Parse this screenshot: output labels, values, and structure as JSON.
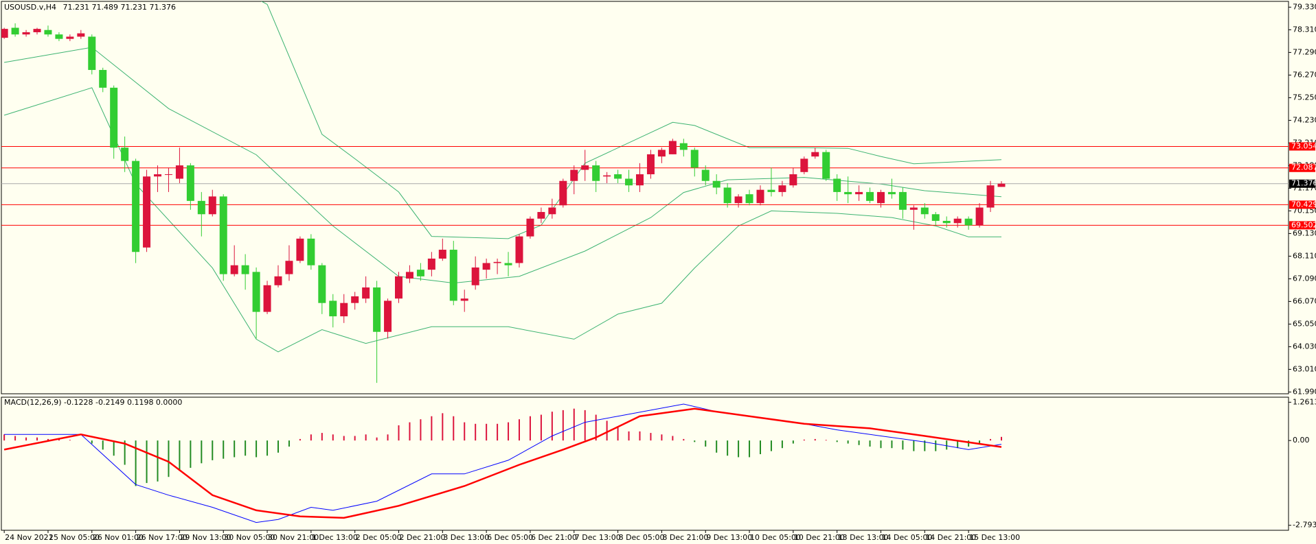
{
  "chart_data": {
    "type": "candlestick",
    "symbol": "USOUSD.v,H4",
    "up_color": "#dc143c",
    "down_color": "#32cd32",
    "xlim": [
      -0.26,
      117.2
    ],
    "ylim": [
      61.91,
      79.59
    ],
    "yticks": [
      {
        "value": 79.33,
        "label": "79.330"
      },
      {
        "value": 78.31,
        "label": "78.310"
      },
      {
        "value": 77.29,
        "label": "77.290"
      },
      {
        "value": 76.27,
        "label": "76.270"
      },
      {
        "value": 75.25,
        "label": "75.250"
      },
      {
        "value": 74.23,
        "label": "74.230"
      },
      {
        "value": 73.21,
        "label": "73.210"
      },
      {
        "value": 72.19,
        "label": "72.190"
      },
      {
        "value": 71.17,
        "label": "71.170"
      },
      {
        "value": 70.15,
        "label": "70.150"
      },
      {
        "value": 69.13,
        "label": "69.130"
      },
      {
        "value": 68.11,
        "label": "68.110"
      },
      {
        "value": 67.09,
        "label": "67.090"
      },
      {
        "value": 66.07,
        "label": "66.070"
      },
      {
        "value": 65.05,
        "label": "65.050"
      },
      {
        "value": 64.03,
        "label": "64.030"
      },
      {
        "value": 63.01,
        "label": "63.010"
      },
      {
        "value": 61.99,
        "label": "61.990"
      }
    ],
    "xticks": [
      {
        "value": 0,
        "label": "24 Nov 2021"
      },
      {
        "value": 4,
        "label": "25 Nov 05:00"
      },
      {
        "value": 8,
        "label": "26 Nov 01:00"
      },
      {
        "value": 12,
        "label": "26 Nov 17:00"
      },
      {
        "value": 16,
        "label": "29 Nov 13:00"
      },
      {
        "value": 20,
        "label": "30 Nov 05:00"
      },
      {
        "value": 24,
        "label": "30 Nov 21:00"
      },
      {
        "value": 28,
        "label": "1 Dec 13:00"
      },
      {
        "value": 32,
        "label": "2 Dec 05:00"
      },
      {
        "value": 36,
        "label": "2 Dec 21:00"
      },
      {
        "value": 40,
        "label": "3 Dec 13:00"
      },
      {
        "value": 44,
        "label": "6 Dec 05:00"
      },
      {
        "value": 48,
        "label": "6 Dec 21:00"
      },
      {
        "value": 52,
        "label": "7 Dec 13:00"
      },
      {
        "value": 56,
        "label": "8 Dec 05:00"
      },
      {
        "value": 60,
        "label": "8 Dec 21:00"
      },
      {
        "value": 64,
        "label": "9 Dec 13:00"
      },
      {
        "value": 68,
        "label": "10 Dec 05:00"
      },
      {
        "value": 72,
        "label": "10 Dec 21:00"
      },
      {
        "value": 76,
        "label": "13 Dec 13:00"
      },
      {
        "value": 80,
        "label": "14 Dec 05:00"
      },
      {
        "value": 84,
        "label": "14 Dec 21:00"
      },
      {
        "value": 88,
        "label": "15 Dec 13:00"
      }
    ],
    "candles": [
      [
        77.95,
        78.4,
        77.9,
        78.35
      ],
      [
        78.4,
        78.6,
        78.0,
        78.1
      ],
      [
        78.1,
        78.3,
        78.0,
        78.2
      ],
      [
        78.2,
        78.4,
        78.1,
        78.35
      ],
      [
        78.3,
        78.5,
        78.0,
        78.1
      ],
      [
        78.1,
        78.2,
        77.8,
        77.9
      ],
      [
        77.9,
        78.1,
        77.8,
        78.0
      ],
      [
        78.0,
        78.3,
        77.9,
        78.15
      ],
      [
        78.0,
        78.1,
        76.3,
        76.5
      ],
      [
        76.5,
        76.6,
        75.5,
        75.7
      ],
      [
        75.7,
        75.8,
        72.5,
        73.0
      ],
      [
        73.0,
        73.5,
        71.9,
        72.4
      ],
      [
        72.4,
        72.5,
        67.8,
        68.3
      ],
      [
        68.5,
        72.0,
        68.3,
        71.7
      ],
      [
        71.7,
        72.2,
        71.0,
        71.8
      ],
      [
        71.8,
        72.1,
        71.0,
        71.8
      ],
      [
        71.6,
        73.0,
        71.4,
        72.2
      ],
      [
        72.2,
        72.3,
        70.2,
        70.6
      ],
      [
        70.6,
        71.0,
        69.0,
        70.0
      ],
      [
        70.0,
        71.1,
        69.9,
        70.8
      ],
      [
        70.8,
        70.9,
        67.0,
        67.3
      ],
      [
        67.3,
        68.6,
        67.2,
        67.7
      ],
      [
        67.7,
        68.2,
        66.6,
        67.3
      ],
      [
        67.4,
        67.6,
        64.4,
        65.6
      ],
      [
        65.6,
        67.0,
        65.5,
        66.8
      ],
      [
        66.8,
        67.7,
        66.7,
        67.2
      ],
      [
        67.3,
        68.6,
        67.0,
        67.9
      ],
      [
        67.9,
        69.0,
        67.8,
        68.9
      ],
      [
        68.9,
        69.1,
        67.5,
        67.7
      ],
      [
        67.7,
        67.8,
        65.5,
        66.0
      ],
      [
        66.1,
        66.4,
        64.9,
        65.4
      ],
      [
        65.4,
        66.4,
        65.1,
        66.0
      ],
      [
        66.0,
        66.5,
        65.7,
        66.3
      ],
      [
        66.2,
        67.2,
        66.0,
        66.7
      ],
      [
        66.7,
        67.0,
        62.4,
        64.7
      ],
      [
        64.7,
        66.2,
        64.4,
        66.1
      ],
      [
        66.2,
        67.4,
        66.0,
        67.2
      ],
      [
        67.1,
        67.7,
        66.9,
        67.4
      ],
      [
        67.5,
        67.8,
        67.0,
        67.2
      ],
      [
        67.5,
        68.3,
        67.2,
        68.0
      ],
      [
        68.0,
        68.9,
        67.9,
        68.4
      ],
      [
        68.4,
        68.8,
        65.9,
        66.1
      ],
      [
        66.1,
        66.6,
        65.6,
        66.2
      ],
      [
        66.8,
        68.1,
        66.6,
        67.6
      ],
      [
        67.5,
        68.0,
        67.1,
        67.8
      ],
      [
        67.8,
        68.0,
        67.3,
        67.85
      ],
      [
        67.8,
        68.3,
        67.2,
        67.7
      ],
      [
        67.8,
        69.1,
        67.6,
        69.0
      ],
      [
        69.0,
        69.9,
        68.9,
        69.8
      ],
      [
        69.8,
        70.3,
        69.6,
        70.1
      ],
      [
        70.0,
        70.7,
        69.8,
        70.3
      ],
      [
        70.4,
        71.6,
        70.3,
        71.5
      ],
      [
        71.5,
        72.2,
        70.9,
        72.0
      ],
      [
        72.0,
        72.9,
        71.5,
        72.2
      ],
      [
        72.2,
        72.4,
        71.0,
        71.5
      ],
      [
        71.7,
        71.9,
        71.4,
        71.75
      ],
      [
        71.8,
        72.0,
        71.4,
        71.6
      ],
      [
        71.6,
        72.0,
        71.0,
        71.3
      ],
      [
        71.3,
        72.3,
        71.0,
        71.8
      ],
      [
        71.8,
        72.9,
        71.6,
        72.7
      ],
      [
        72.6,
        73.0,
        72.3,
        72.9
      ],
      [
        72.7,
        73.4,
        72.7,
        73.3
      ],
      [
        73.2,
        73.4,
        72.6,
        72.9
      ],
      [
        72.9,
        73.0,
        71.7,
        72.1
      ],
      [
        72.0,
        72.2,
        71.3,
        71.5
      ],
      [
        71.5,
        71.8,
        70.9,
        71.2
      ],
      [
        71.2,
        71.4,
        70.3,
        70.5
      ],
      [
        70.5,
        70.9,
        70.3,
        70.8
      ],
      [
        70.9,
        71.1,
        70.4,
        70.5
      ],
      [
        70.5,
        71.3,
        70.4,
        71.1
      ],
      [
        71.1,
        72.1,
        70.8,
        71.0
      ],
      [
        71.0,
        71.5,
        70.8,
        71.3
      ],
      [
        71.3,
        72.1,
        71.2,
        71.8
      ],
      [
        71.9,
        72.6,
        71.8,
        72.5
      ],
      [
        72.6,
        73.0,
        72.5,
        72.8
      ],
      [
        72.8,
        72.9,
        71.5,
        71.6
      ],
      [
        71.6,
        71.8,
        70.6,
        71.0
      ],
      [
        71.0,
        71.7,
        70.5,
        70.9
      ],
      [
        70.9,
        71.3,
        70.6,
        71.0
      ],
      [
        71.0,
        71.2,
        70.5,
        70.6
      ],
      [
        70.5,
        71.1,
        70.3,
        71.0
      ],
      [
        71.0,
        71.6,
        70.7,
        70.9
      ],
      [
        71.0,
        71.2,
        69.8,
        70.2
      ],
      [
        70.2,
        70.4,
        69.3,
        70.3
      ],
      [
        70.3,
        70.5,
        69.8,
        70.0
      ],
      [
        70.0,
        70.1,
        69.5,
        69.7
      ],
      [
        69.7,
        69.9,
        69.4,
        69.6
      ],
      [
        69.6,
        69.9,
        69.4,
        69.8
      ],
      [
        69.8,
        69.9,
        69.3,
        69.5
      ],
      [
        69.5,
        70.5,
        69.4,
        70.3
      ],
      [
        70.3,
        71.5,
        70.1,
        71.3
      ],
      [
        71.231,
        71.489,
        71.231,
        71.376
      ]
    ],
    "bands": [
      {
        "color": "#3cb371",
        "x": [
          0,
          8,
          15,
          22,
          24,
          29,
          32,
          36,
          39,
          46,
          49,
          53,
          61,
          63,
          68,
          73,
          77,
          80,
          83,
          91
        ],
        "values": [
          80.2,
          80.0,
          81.0,
          80.0,
          79.45,
          73.6,
          72.5,
          71.0,
          69.0,
          68.9,
          69.5,
          72.3,
          74.14,
          74.0,
          73.0,
          73.0,
          72.97,
          72.6,
          72.27,
          72.46
        ]
      },
      {
        "color": "#3cb371",
        "x": [
          0,
          8,
          15,
          23,
          30,
          36,
          41,
          47,
          53,
          59,
          62,
          66,
          73,
          80,
          84,
          91
        ],
        "values": [
          76.84,
          77.52,
          74.76,
          72.68,
          69.47,
          67.2,
          66.9,
          67.2,
          68.34,
          69.85,
          70.98,
          71.55,
          71.66,
          71.36,
          71.06,
          70.79
        ]
      },
      {
        "color": "#3cb371",
        "x": [
          0,
          8,
          12,
          19,
          23,
          25,
          29,
          33,
          39,
          46,
          52,
          56,
          60,
          63,
          67,
          70,
          76,
          81,
          85,
          88,
          91
        ],
        "values": [
          74.46,
          75.7,
          71.36,
          67.58,
          64.37,
          63.8,
          64.8,
          64.18,
          64.93,
          64.93,
          64.37,
          65.5,
          65.99,
          67.58,
          69.47,
          70.15,
          70.04,
          69.85,
          69.47,
          68.98,
          68.98
        ]
      }
    ],
    "hlines": [
      73.054,
      72.087,
      70.429,
      69.502
    ],
    "hline_color": "#ff0000",
    "current_price": 71.376,
    "current_line_color": "#a9a9a9",
    "macd": {
      "label": "MACD(12,26,9) -0.1228 -0.2149 0.1198 0.0000",
      "ylim": [
        -2.958,
        1.427
      ],
      "yticks": [
        1.2613,
        {
          "value": 0,
          "label": "0.00"
        },
        -2.793
      ],
      "histogram": [
        0.2,
        0.15,
        0.1,
        0.1,
        0.05,
        0.05,
        0.02,
        0.0,
        -0.1,
        -0.3,
        -0.5,
        -0.8,
        -1.5,
        -1.4,
        -1.35,
        -1.2,
        -1.0,
        -0.9,
        -0.75,
        -0.65,
        -0.6,
        -0.55,
        -0.5,
        -0.55,
        -0.5,
        -0.4,
        -0.2,
        0.05,
        0.2,
        0.25,
        0.2,
        0.15,
        0.15,
        0.2,
        0.1,
        0.2,
        0.5,
        0.6,
        0.7,
        0.8,
        0.9,
        0.8,
        0.6,
        0.55,
        0.55,
        0.55,
        0.6,
        0.7,
        0.8,
        0.85,
        0.95,
        1.0,
        1.05,
        1.0,
        0.85,
        0.65,
        0.45,
        0.3,
        0.3,
        0.25,
        0.2,
        0.15,
        0.05,
        -0.05,
        -0.2,
        -0.4,
        -0.5,
        -0.55,
        -0.55,
        -0.45,
        -0.35,
        -0.25,
        -0.1,
        0.03,
        0.05,
        0.02,
        -0.05,
        -0.1,
        -0.15,
        -0.2,
        -0.25,
        -0.25,
        -0.3,
        -0.35,
        -0.35,
        -0.35,
        -0.3,
        -0.25,
        -0.2,
        -0.1,
        0.05,
        0.1198
      ],
      "series": [
        {
          "color": "#0000ff",
          "width": 1,
          "x": [
            0,
            7,
            12,
            15,
            19,
            23,
            25,
            28,
            30,
            34,
            39,
            42,
            46,
            50,
            53,
            56,
            62,
            65,
            69,
            73,
            76,
            80,
            84,
            88,
            91
          ],
          "values": [
            0.2,
            0.2,
            -1.45,
            -1.8,
            -2.2,
            -2.7,
            -2.6,
            -2.2,
            -2.3,
            -2.0,
            -1.1,
            -1.1,
            -0.65,
            0.15,
            0.6,
            0.8,
            1.2,
            0.95,
            0.75,
            0.55,
            0.35,
            0.15,
            -0.05,
            -0.3,
            -0.1228
          ]
        },
        {
          "color": "#ff0000",
          "width": 2.5,
          "x": [
            0,
            7,
            11,
            15,
            19,
            23,
            27,
            31,
            36,
            42,
            47,
            51,
            54,
            58,
            63,
            68,
            73,
            79,
            84,
            91
          ],
          "values": [
            -0.3,
            0.2,
            -0.1,
            -0.7,
            -1.8,
            -2.3,
            -2.5,
            -2.55,
            -2.15,
            -1.5,
            -0.8,
            -0.3,
            0.1,
            0.8,
            1.05,
            0.8,
            0.55,
            0.4,
            0.15,
            -0.2149
          ]
        }
      ]
    }
  }
}
